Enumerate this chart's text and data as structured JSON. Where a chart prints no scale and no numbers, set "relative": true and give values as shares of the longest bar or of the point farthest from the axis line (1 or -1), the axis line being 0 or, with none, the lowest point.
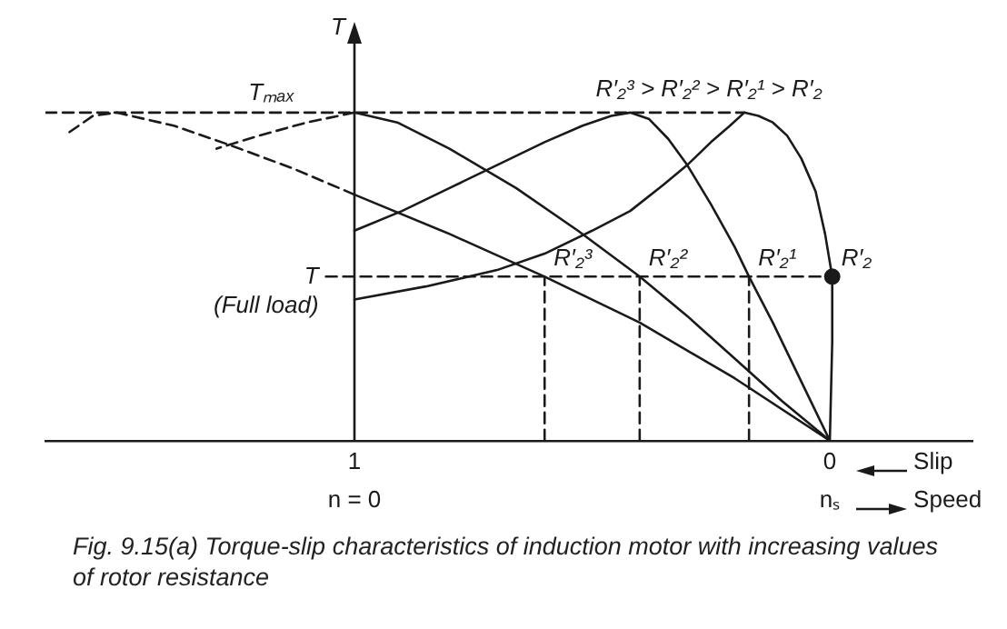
{
  "chart_data": {
    "type": "line",
    "title": "Fig. 9.15(a) Torque-slip characteristics of induction motor with increasing values of rotor resistance",
    "xlabel": "Slip",
    "ylabel": "T",
    "relative": true,
    "ref_lines": [
      {
        "axis": "x",
        "value": 1,
        "color": "#1a1a1a",
        "line_style": "solid"
      }
    ],
    "xlim": [
      1.65,
      -0.3
    ],
    "xticks": [
      1,
      0
    ],
    "grid": false,
    "legend": false,
    "tick_labels": "x",
    "annotations": [
      {
        "text": "Tₘₐₓ",
        "x": 1.11,
        "y": 1
      },
      {
        "text": "T\n(Full load)",
        "x": 1.06,
        "y": 0.5
      },
      "R′₂³ > R′₂² > R′₂¹ > R′₂",
      "n = 0",
      "nₛ",
      "Speed"
    ],
    "series": [
      {
        "name": "R′₂",
        "color": "#1a1a1a",
        "line_style": "solid",
        "marker": "none",
        "x": [
          1,
          0.85,
          0.7,
          0.6,
          0.5,
          0.42,
          0.35,
          0.3,
          0.25,
          0.21,
          0.18,
          0.15,
          0.12,
          0.09,
          0.06,
          0.03,
          0.01,
          -0.005,
          -0.005,
          0
        ],
        "values": [
          0.43,
          0.47,
          0.52,
          0.57,
          0.64,
          0.7,
          0.78,
          0.84,
          0.91,
          0.96,
          1.0,
          0.99,
          0.97,
          0.93,
          0.86,
          0.76,
          0.63,
          0.5,
          0.3,
          0
        ]
      },
      {
        "name": "R′₂¹",
        "color": "#1a1a1a",
        "line_style": "solid",
        "marker": "none",
        "x": [
          1,
          0.9,
          0.8,
          0.7,
          0.6,
          0.52,
          0.46,
          0.42,
          0.38,
          0.34,
          0.3,
          0.25,
          0.2,
          0.17,
          0.12,
          0.06,
          0
        ],
        "values": [
          0.64,
          0.7,
          0.77,
          0.84,
          0.91,
          0.96,
          0.99,
          1.0,
          0.98,
          0.92,
          0.84,
          0.72,
          0.59,
          0.5,
          0.36,
          0.18,
          0
        ]
      },
      {
        "name": "R′₂²",
        "color": "#1a1a1a",
        "line_style": "solid",
        "marker": "none",
        "x": [
          1,
          0.91,
          0.8,
          0.66,
          0.53,
          0.4,
          0.3,
          0.2,
          0.1,
          0
        ],
        "values": [
          1.0,
          0.97,
          0.89,
          0.77,
          0.64,
          0.5,
          0.38,
          0.25,
          0.12,
          0
        ]
      },
      {
        "color": "#1a1a1a",
        "line_style": "dashed",
        "marker": "none",
        "x": [
          1,
          1.1,
          1.2,
          1.29
        ],
        "values": [
          1.0,
          0.97,
          0.93,
          0.89
        ]
      },
      {
        "name": "R′₂³",
        "color": "#1a1a1a",
        "line_style": "solid",
        "marker": "none",
        "x": [
          1,
          0.8,
          0.6,
          0.4,
          0.2,
          0
        ],
        "values": [
          0.75,
          0.63,
          0.5,
          0.36,
          0.19,
          0
        ]
      },
      {
        "color": "#1a1a1a",
        "line_style": "dashed",
        "marker": "none",
        "x": [
          1,
          1.13,
          1.26,
          1.38,
          1.5,
          1.55,
          1.6
        ],
        "values": [
          0.75,
          0.83,
          0.9,
          0.96,
          1.0,
          0.99,
          0.94
        ]
      },
      {
        "color": "#1a1a1a",
        "line_style": "dashed",
        "marker": "none",
        "x": [
          1.65,
          0.18
        ],
        "values": [
          1,
          1
        ]
      },
      {
        "color": "#1a1a1a",
        "line_style": "dashed",
        "marker": "none",
        "x": [
          1.06,
          -0.005
        ],
        "values": [
          0.5,
          0.5
        ]
      },
      {
        "color": "#1a1a1a",
        "line_style": "dashed",
        "marker": "none",
        "x": [
          0.6,
          0.6
        ],
        "values": [
          0,
          0.5
        ]
      },
      {
        "color": "#1a1a1a",
        "line_style": "dashed",
        "marker": "none",
        "x": [
          0.4,
          0.4
        ],
        "values": [
          0,
          0.5
        ]
      },
      {
        "color": "#1a1a1a",
        "line_style": "dashed",
        "marker": "none",
        "x": [
          0.17,
          0.17
        ],
        "values": [
          0,
          0.5
        ]
      },
      {
        "type": "scatter",
        "color": "#1a1a1a",
        "marker": "circle",
        "x": [
          -0.005
        ],
        "values": [
          0.5
        ]
      }
    ]
  }
}
